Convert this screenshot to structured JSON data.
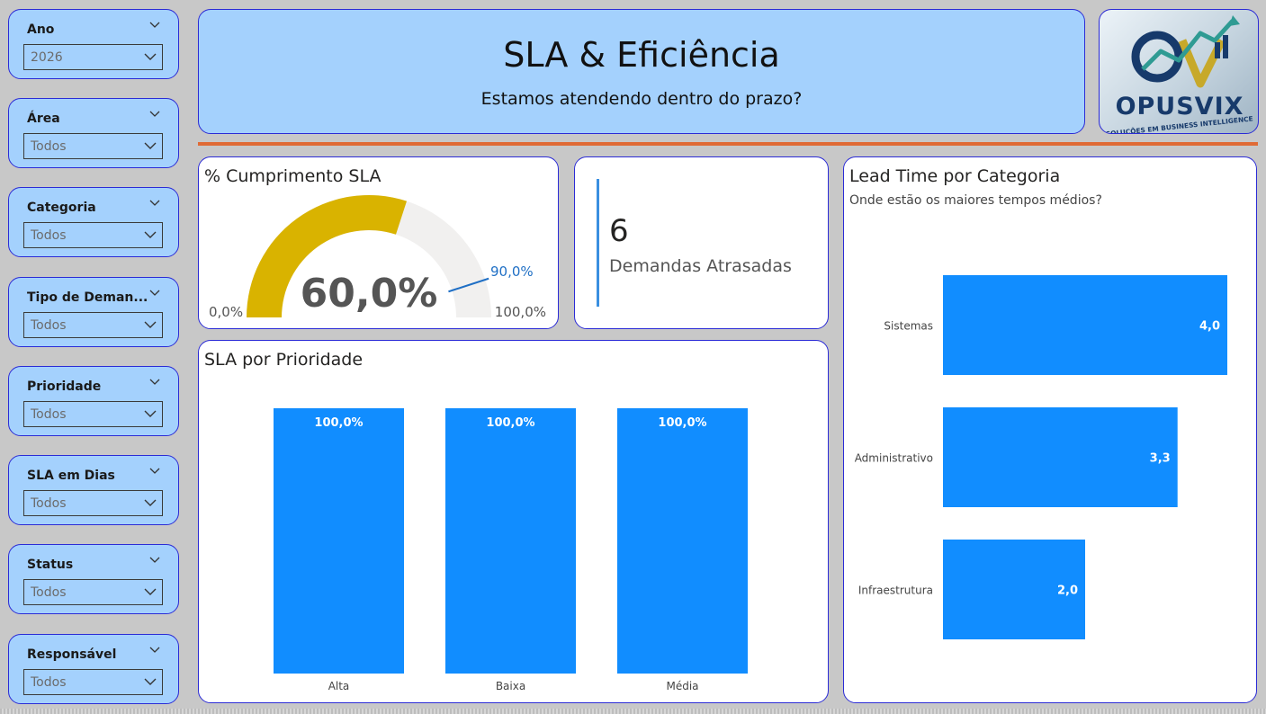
{
  "header": {
    "title": "SLA & Eficiência",
    "subtitle": "Estamos atendendo dentro do prazo?"
  },
  "logo": {
    "name": "OPUSVIX",
    "tagline": "SOLUÇÕES EM BUSINESS INTELLIGENCE"
  },
  "slicers": [
    {
      "title": "Ano",
      "value": "2026"
    },
    {
      "title": "Área",
      "value": "Todos"
    },
    {
      "title": "Categoria",
      "value": "Todos"
    },
    {
      "title": "Tipo de Deman...",
      "value": "Todos"
    },
    {
      "title": "Prioridade",
      "value": "Todos"
    },
    {
      "title": "SLA em Dias",
      "value": "Todos"
    },
    {
      "title": "Status",
      "value": "Todos"
    },
    {
      "title": "Responsável",
      "value": "Todos"
    }
  ],
  "gauge": {
    "title": "% Cumprimento SLA",
    "value": 0.6,
    "value_label": "60,0%",
    "target": 0.9,
    "target_label": "90,0%",
    "min_label": "0,0%",
    "max_label": "100,0%"
  },
  "kpi": {
    "value": "6",
    "label": "Demandas Atrasadas"
  },
  "colors": {
    "accent_blue": "#118dff",
    "gauge_fill": "#d9b300",
    "gauge_track": "#f1f0ef",
    "target_line": "#1f6fc5",
    "card_border": "#2b2bd6",
    "panel_bg": "#a4d1fd",
    "divider": "#e06a35"
  },
  "chart_data": [
    {
      "type": "bar",
      "title": "SLA por Prioridade",
      "categories": [
        "Alta",
        "Baixa",
        "Média"
      ],
      "values": [
        1.0,
        1.0,
        1.0
      ],
      "value_labels": [
        "100,0%",
        "100,0%",
        "100,0%"
      ],
      "ylim": [
        0,
        1
      ]
    },
    {
      "type": "bar",
      "orientation": "horizontal",
      "title": "Lead Time por Categoria",
      "subtitle": "Onde estão os maiores tempos médios?",
      "categories": [
        "Sistemas",
        "Administrativo",
        "Infraestrutura"
      ],
      "values": [
        4.0,
        3.3,
        2.0
      ],
      "value_labels": [
        "4,0",
        "3,3",
        "2,0"
      ],
      "xlim": [
        0,
        4
      ]
    }
  ]
}
